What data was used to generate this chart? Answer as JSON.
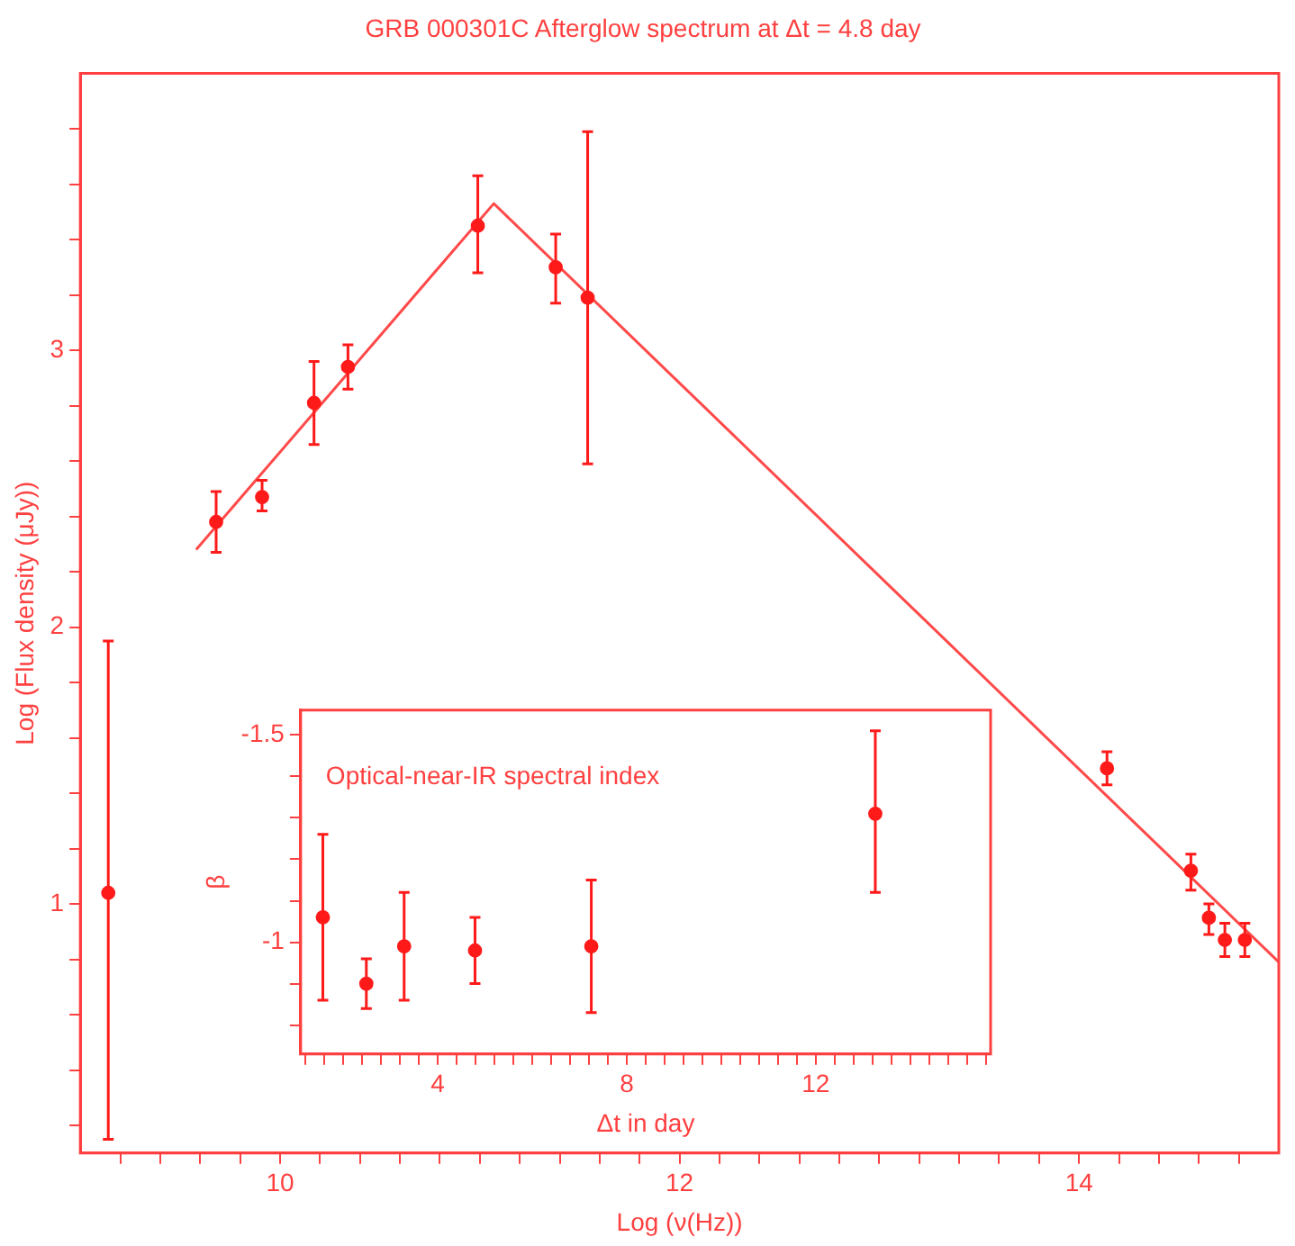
{
  "chart_data": [
    {
      "type": "scatter",
      "title": "GRB 000301C Afterglow spectrum at Δt = 4.8 day",
      "xlabel": "Log (ν(Hz))",
      "ylabel": "Log (Flux density (μJy))",
      "xlim": [
        9,
        15
      ],
      "ylim": [
        0.1,
        4
      ],
      "xticks": [
        {
          "value": 9.2,
          "label": null
        },
        {
          "value": 9.4,
          "label": null
        },
        {
          "value": 9.6,
          "label": null
        },
        {
          "value": 9.8,
          "label": null
        },
        10,
        {
          "value": 10.2,
          "label": null
        },
        {
          "value": 10.4,
          "label": null
        },
        {
          "value": 10.6,
          "label": null
        },
        {
          "value": 10.8,
          "label": null
        },
        {
          "value": 11,
          "label": null
        },
        {
          "value": 11.2,
          "label": null
        },
        {
          "value": 11.4,
          "label": null
        },
        {
          "value": 11.6,
          "label": null
        },
        {
          "value": 11.8,
          "label": null
        },
        12,
        {
          "value": 12.2,
          "label": null
        },
        {
          "value": 12.4,
          "label": null
        },
        {
          "value": 12.6,
          "label": null
        },
        {
          "value": 12.8,
          "label": null
        },
        {
          "value": 13,
          "label": null
        },
        {
          "value": 13.2,
          "label": null
        },
        {
          "value": 13.4,
          "label": null
        },
        {
          "value": 13.6,
          "label": null
        },
        {
          "value": 13.8,
          "label": null
        },
        14,
        {
          "value": 14.2,
          "label": null
        },
        {
          "value": 14.4,
          "label": null
        },
        {
          "value": 14.6,
          "label": null
        },
        {
          "value": 14.8,
          "label": null
        }
      ],
      "yticks": [
        {
          "value": 0.2,
          "label": null
        },
        {
          "value": 0.4,
          "label": null
        },
        {
          "value": 0.6,
          "label": null
        },
        {
          "value": 0.8,
          "label": null
        },
        1,
        {
          "value": 1.2,
          "label": null
        },
        {
          "value": 1.4,
          "label": null
        },
        {
          "value": 1.6,
          "label": null
        },
        {
          "value": 1.8,
          "label": null
        },
        2,
        {
          "value": 2.2,
          "label": null
        },
        {
          "value": 2.4,
          "label": null
        },
        {
          "value": 2.6,
          "label": null
        },
        {
          "value": 2.8,
          "label": null
        },
        3,
        {
          "value": 3.2,
          "label": null
        },
        {
          "value": 3.4,
          "label": null
        },
        {
          "value": 3.6,
          "label": null
        },
        {
          "value": 3.8,
          "label": null
        }
      ],
      "marker": "circle",
      "legend": false,
      "grid": false,
      "series": [
        {
          "color": "#ff1a1a",
          "x": [
            9.14,
            9.68,
            9.91,
            10.17,
            10.34,
            10.99,
            11.38,
            11.54,
            14.14,
            14.56,
            14.65,
            14.73,
            14.83
          ],
          "values": [
            1.04,
            2.38,
            2.47,
            2.81,
            2.94,
            3.45,
            3.3,
            3.19,
            1.49,
            1.12,
            0.95,
            0.87,
            0.87
          ],
          "errors": [
            [
              0.15,
              1.95
            ],
            [
              2.27,
              2.49
            ],
            [
              2.42,
              2.53
            ],
            [
              2.66,
              2.96
            ],
            [
              2.86,
              3.02
            ],
            [
              3.28,
              3.63
            ],
            [
              3.17,
              3.42
            ],
            [
              2.59,
              3.79
            ],
            [
              1.43,
              1.55
            ],
            [
              1.05,
              1.18
            ],
            [
              0.89,
              1.0
            ],
            [
              0.81,
              0.93
            ],
            [
              0.81,
              0.93
            ]
          ]
        },
        {
          "type": "line",
          "color": "#ff4a4a",
          "marker": "none",
          "line_style": "solid",
          "x": [
            9.58,
            11.07,
            15.0
          ],
          "values": [
            2.28,
            3.53,
            0.79
          ]
        }
      ]
    },
    {
      "type": "scatter",
      "xlabel": "Δt in day",
      "ylabel": "β",
      "annotations": [
        "Optical-near-IR spectral index"
      ],
      "xlim": [
        1.1,
        15.7
      ],
      "ylim": [
        -0.73,
        -1.56
      ],
      "xticks": [
        {
          "value": 1.2,
          "label": null
        },
        {
          "value": 1.6,
          "label": null
        },
        {
          "value": 2,
          "label": null
        },
        {
          "value": 2.4,
          "label": null
        },
        {
          "value": 2.8,
          "label": null
        },
        {
          "value": 3.2,
          "label": null
        },
        {
          "value": 3.6,
          "label": null
        },
        4,
        {
          "value": 4.4,
          "label": null
        },
        {
          "value": 4.8,
          "label": null
        },
        {
          "value": 5.2,
          "label": null
        },
        {
          "value": 5.6,
          "label": null
        },
        {
          "value": 6,
          "label": null
        },
        {
          "value": 6.4,
          "label": null
        },
        {
          "value": 6.8,
          "label": null
        },
        {
          "value": 7.2,
          "label": null
        },
        {
          "value": 7.6,
          "label": null
        },
        8,
        {
          "value": 8.4,
          "label": null
        },
        {
          "value": 8.8,
          "label": null
        },
        {
          "value": 9.2,
          "label": null
        },
        {
          "value": 9.6,
          "label": null
        },
        {
          "value": 10,
          "label": null
        },
        {
          "value": 10.4,
          "label": null
        },
        {
          "value": 10.8,
          "label": null
        },
        {
          "value": 11.2,
          "label": null
        },
        {
          "value": 11.6,
          "label": null
        },
        12,
        {
          "value": 12.4,
          "label": null
        },
        {
          "value": 12.8,
          "label": null
        },
        {
          "value": 13.2,
          "label": null
        },
        {
          "value": 13.6,
          "label": null
        },
        {
          "value": 14,
          "label": null
        },
        {
          "value": 14.4,
          "label": null
        },
        {
          "value": 14.8,
          "label": null
        },
        {
          "value": 15.2,
          "label": null
        },
        {
          "value": 15.6,
          "label": null
        }
      ],
      "yticks": [
        -1.5,
        {
          "value": -1.4,
          "label": null
        },
        {
          "value": -1.3,
          "label": null
        },
        {
          "value": -1.2,
          "label": null
        },
        {
          "value": -1.1,
          "label": null
        },
        -1,
        {
          "value": -0.9,
          "label": null
        },
        {
          "value": -0.8,
          "label": null
        }
      ],
      "marker": "circle",
      "legend": false,
      "grid": false,
      "series": [
        {
          "color": "#ff1a1a",
          "x": [
            1.57,
            2.49,
            3.29,
            4.79,
            7.25,
            13.26
          ],
          "values": [
            -1.06,
            -0.9,
            -0.99,
            -0.98,
            -0.99,
            -1.31
          ],
          "errors": [
            [
              -1.26,
              -0.86
            ],
            [
              -0.96,
              -0.84
            ],
            [
              -1.12,
              -0.86
            ],
            [
              -1.06,
              -0.9
            ],
            [
              -1.15,
              -0.83
            ],
            [
              -1.51,
              -1.12
            ]
          ]
        }
      ]
    }
  ]
}
